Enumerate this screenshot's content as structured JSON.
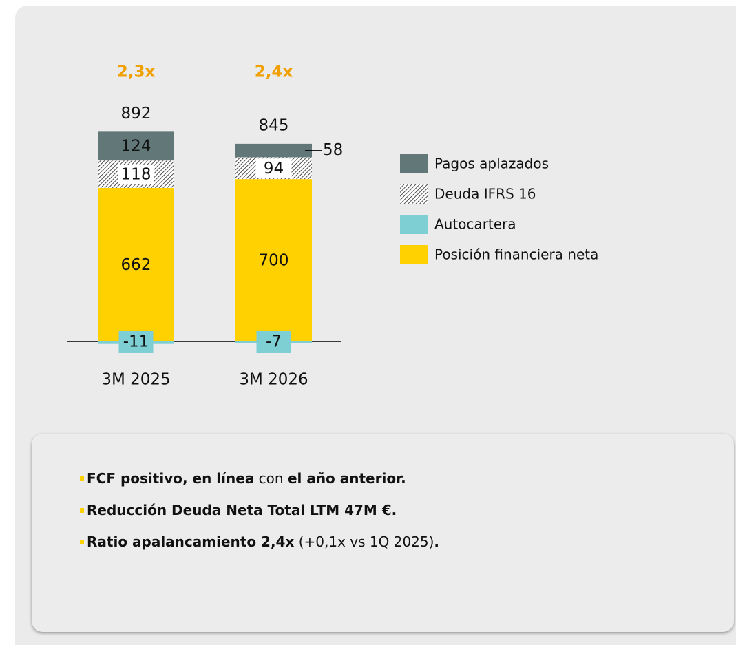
{
  "chart_data": {
    "type": "stacked_bar",
    "categories": [
      "3M 2025",
      "3M 2026"
    ],
    "ratio_labels": [
      "2,3x",
      "2,4x"
    ],
    "total_labels": [
      892,
      845
    ],
    "series": [
      {
        "name": "Pagos aplazados",
        "color": "#627878",
        "values": [
          124,
          58
        ]
      },
      {
        "name": "Deuda IFRS 16",
        "color": "#ffffff",
        "hatch": true,
        "values": [
          118,
          94
        ]
      },
      {
        "name": "Autocartera",
        "color": "#7ecfd4",
        "values": [
          -11,
          -7
        ]
      },
      {
        "name": "Posición financiera neta",
        "color": "#ffd100",
        "values": [
          662,
          700
        ]
      }
    ]
  },
  "notes": {
    "bullets": [
      [
        {
          "text": "FCF positivo, en línea",
          "bold": true
        },
        {
          "text": " con ",
          "bold": false
        },
        {
          "text": "el año anterior.",
          "bold": true
        }
      ],
      [
        {
          "text": "Reducción Deuda Neta Total LTM 47M €.",
          "bold": true
        }
      ],
      [
        {
          "text": "Ratio apalancamiento 2,4x",
          "bold": true
        },
        {
          "text": " (+0,1x vs 1Q 2025)",
          "bold": false
        },
        {
          "text": ".",
          "bold": true
        }
      ]
    ]
  }
}
